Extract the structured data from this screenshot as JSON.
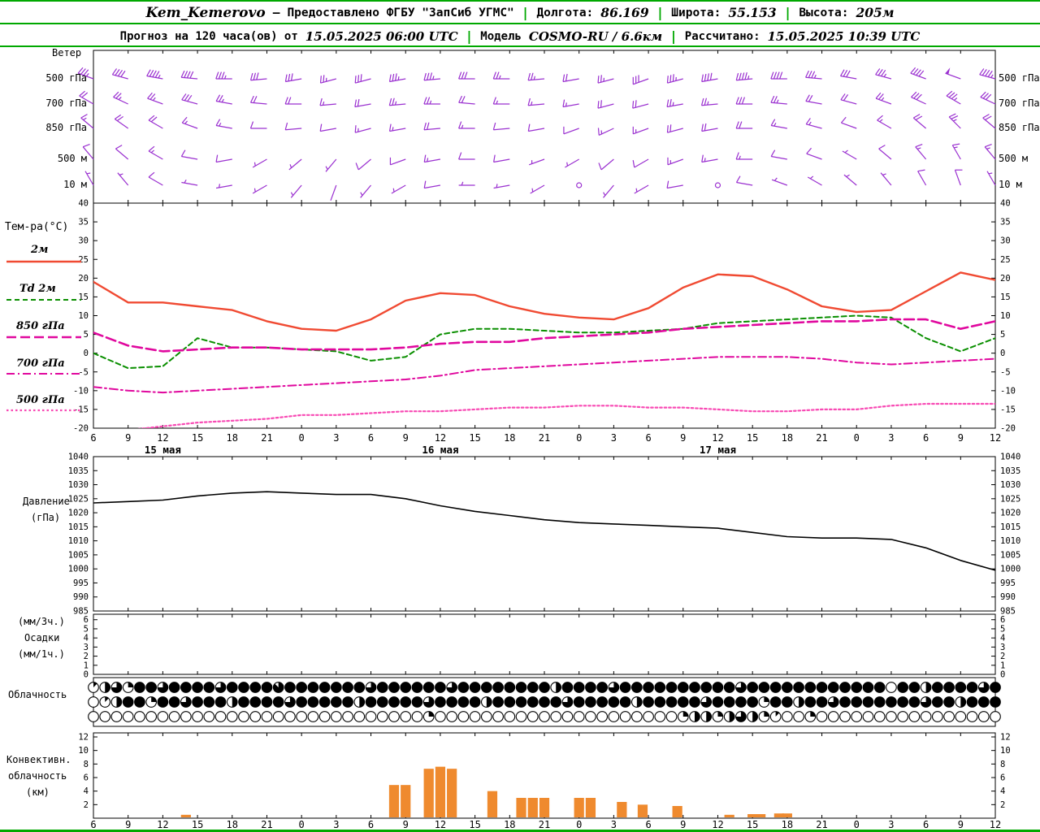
{
  "header": {
    "station": "Kem_Kemerovo",
    "dash": "—",
    "provided": "Предоставлено ФГБУ \"ЗапСиб УГМС\"",
    "sep": "|",
    "lon_label": "Долгота:",
    "lon_value": "86.169",
    "lat_label": "Широта:",
    "lat_value": "55.153",
    "alt_label": "Высота:",
    "alt_value": "205м",
    "forecast_label": "Прогноз на 120 часа(ов) от",
    "init_time": "15.05.2025 06:00 UTC",
    "model_label": "Модель",
    "model_value": "COSMO-RU / 6.6км",
    "calc_label": "Рассчитано:",
    "calc_time": "15.05.2025 10:39 UTC"
  },
  "labels": {
    "wind": "Ветер",
    "wind_levels": [
      "500 гПа",
      "700 гПа",
      "850 гПа",
      "500 м",
      "10 м"
    ],
    "temp_title": "Тем-ра(°C)",
    "legend_t2m": "2м",
    "legend_td": "Td 2м",
    "legend_850": "850 гПа",
    "legend_700": "700 гПа",
    "legend_500": "500 гПа",
    "pressure1": "Давление",
    "pressure2": "(гПа)",
    "precip1": "(мм/3ч.)",
    "precip2": "Осадки",
    "precip3": "(мм/1ч.)",
    "cloud": "Облачность",
    "conv1": "Конвективн.",
    "conv2": "облачность",
    "conv3": "(км)"
  },
  "colors": {
    "accent_green": "#00a800",
    "barb_purple": "#9a30d0",
    "temp_red": "#f04a32",
    "dew_green": "#0a8f00",
    "magenta": "#e0089e",
    "pink": "#f84ab4",
    "pressure_black": "#000000",
    "conv_orange": "#ef8a2e"
  },
  "chart_data": {
    "x_hours": [
      6,
      9,
      12,
      15,
      18,
      21,
      24,
      27,
      30,
      33,
      36,
      39,
      42,
      45,
      48,
      51,
      54,
      57,
      60,
      63,
      66,
      69,
      72,
      75,
      78,
      81,
      84
    ],
    "x_hour_labels": [
      "6",
      "9",
      "12",
      "15",
      "18",
      "21",
      "0",
      "3",
      "6",
      "9",
      "12",
      "15",
      "18",
      "21",
      "0",
      "3",
      "6",
      "9",
      "12",
      "15",
      "18",
      "21",
      "0",
      "3",
      "6",
      "9",
      "12"
    ],
    "dates": [
      {
        "label": "15 мая",
        "hour": 12
      },
      {
        "label": "16 мая",
        "hour": 36
      },
      {
        "label": "17 мая",
        "hour": 60
      }
    ],
    "panels": [
      {
        "type": "wind_barbs",
        "title": "Ветер",
        "color": "#9a30d0",
        "levels": [
          {
            "name": "500 гПа",
            "dir": [
              290,
              285,
              280,
              275,
              270,
              265,
              260,
              255,
              255,
              260,
              265,
              270,
              270,
              265,
              260,
              255,
              250,
              255,
              260,
              265,
              270,
              275,
              280,
              285,
              290,
              290,
              285
            ],
            "speed_kt": [
              35,
              40,
              45,
              40,
              35,
              30,
              30,
              25,
              30,
              35,
              35,
              30,
              25,
              25,
              20,
              25,
              30,
              35,
              40,
              45,
              40,
              35,
              30,
              35,
              40,
              50,
              45
            ]
          },
          {
            "name": "700 гПа",
            "dir": [
              300,
              295,
              290,
              285,
              280,
              275,
              270,
              265,
              260,
              265,
              270,
              275,
              270,
              265,
              260,
              255,
              255,
              260,
              265,
              270,
              275,
              280,
              285,
              290,
              295,
              300,
              295
            ],
            "speed_kt": [
              20,
              25,
              25,
              30,
              25,
              20,
              20,
              15,
              20,
              25,
              25,
              20,
              15,
              15,
              15,
              20,
              20,
              25,
              25,
              30,
              25,
              20,
              20,
              25,
              30,
              35,
              30
            ]
          },
          {
            "name": "850 гПа",
            "dir": [
              310,
              305,
              300,
              290,
              280,
              270,
              265,
              260,
              255,
              260,
              265,
              270,
              265,
              260,
              250,
              245,
              250,
              255,
              260,
              270,
              280,
              285,
              290,
              300,
              310,
              315,
              310
            ],
            "speed_kt": [
              15,
              20,
              20,
              15,
              15,
              10,
              10,
              10,
              15,
              15,
              20,
              15,
              10,
              10,
              10,
              15,
              15,
              20,
              20,
              20,
              15,
              15,
              10,
              15,
              20,
              25,
              20
            ]
          },
          {
            "name": "500 м",
            "dir": [
              320,
              310,
              300,
              280,
              260,
              240,
              230,
              220,
              230,
              250,
              260,
              270,
              260,
              250,
              240,
              230,
              240,
              250,
              260,
              270,
              280,
              290,
              300,
              310,
              320,
              330,
              320
            ],
            "speed_kt": [
              10,
              10,
              15,
              10,
              10,
              5,
              5,
              5,
              10,
              10,
              15,
              10,
              10,
              5,
              5,
              10,
              10,
              15,
              15,
              15,
              10,
              10,
              5,
              10,
              15,
              15,
              15
            ]
          },
          {
            "name": "10 м",
            "dir": [
              330,
              320,
              300,
              280,
              260,
              240,
              220,
              200,
              220,
              240,
              260,
              270,
              260,
              240,
              0,
              220,
              240,
              260,
              0,
              280,
              290,
              300,
              310,
              320,
              330,
              340,
              330
            ],
            "speed_kt": [
              5,
              5,
              10,
              5,
              5,
              3,
              3,
              2,
              5,
              5,
              10,
              5,
              5,
              3,
              0,
              5,
              5,
              10,
              0,
              10,
              5,
              5,
              5,
              5,
              10,
              10,
              5
            ]
          }
        ]
      },
      {
        "type": "line",
        "title": "Тем-ра(°C)",
        "ylim": [
          -20,
          40
        ],
        "yticks": [
          40,
          35,
          30,
          25,
          20,
          15,
          10,
          5,
          0,
          -5,
          -10,
          -15,
          -20
        ],
        "series": [
          {
            "name": "2м",
            "color": "#f04a32",
            "style": "solid",
            "width": 2.4,
            "values": [
              19,
              13.5,
              13.5,
              12.5,
              11.5,
              8.5,
              6.5,
              6,
              9,
              14,
              16,
              15.5,
              12.5,
              10.5,
              9.5,
              9,
              12,
              17.5,
              21,
              20.5,
              17,
              12.5,
              11,
              11.5,
              16.5,
              21.5,
              19.5
            ]
          },
          {
            "name": "Td 2м",
            "color": "#0a8f00",
            "style": "dash",
            "width": 2,
            "values": [
              0,
              -4,
              -3.5,
              4,
              1.5,
              1.5,
              1,
              0.5,
              -2,
              -1,
              5,
              6.5,
              6.5,
              6,
              5.5,
              5.5,
              6,
              6.5,
              8,
              8.5,
              9,
              9.5,
              10,
              9.5,
              4,
              0.5,
              4
            ]
          },
          {
            "name": "850 гПа",
            "color": "#e0089e",
            "style": "longdash",
            "width": 2.6,
            "values": [
              5.5,
              2,
              0.5,
              1,
              1.5,
              1.5,
              1,
              1,
              1,
              1.5,
              2.5,
              3,
              3,
              4,
              4.5,
              5,
              5.5,
              6.5,
              7,
              7.5,
              8,
              8.5,
              8.5,
              9,
              9,
              6.5,
              8.5
            ]
          },
          {
            "name": "700 гПа",
            "color": "#e0089e",
            "style": "dashdot",
            "width": 2,
            "values": [
              -9,
              -10,
              -10.5,
              -10,
              -9.5,
              -9,
              -8.5,
              -8,
              -7.5,
              -7,
              -6,
              -4.5,
              -4,
              -3.5,
              -3,
              -2.5,
              -2,
              -1.5,
              -1,
              -1,
              -1,
              -1.5,
              -2.5,
              -3,
              -2.5,
              -2,
              -1.5
            ]
          },
          {
            "name": "500 гПа",
            "color": "#f84ab4",
            "style": "dot",
            "width": 2.2,
            "values": [
              -21,
              -20.5,
              -19.5,
              -18.5,
              -18,
              -17.5,
              -16.5,
              -16.5,
              -16,
              -15.5,
              -15.5,
              -15,
              -14.5,
              -14.5,
              -14,
              -14,
              -14.5,
              -14.5,
              -15,
              -15.5,
              -15.5,
              -15,
              -15,
              -14,
              -13.5,
              -13.5,
              -13.5
            ]
          }
        ]
      },
      {
        "type": "line",
        "title": "Давление (гПа)",
        "ylim": [
          985,
          1040
        ],
        "yticks": [
          1040,
          1035,
          1030,
          1025,
          1020,
          1015,
          1010,
          1005,
          1000,
          995,
          990,
          985
        ],
        "series": [
          {
            "name": "Давление",
            "color": "#000000",
            "style": "solid",
            "width": 1.6,
            "values": [
              1023.5,
              1024,
              1024.5,
              1026,
              1027,
              1027.5,
              1027,
              1026.5,
              1026.5,
              1025,
              1022.5,
              1020.5,
              1019,
              1017.5,
              1016.5,
              1016,
              1015.5,
              1015,
              1014.5,
              1013,
              1011.5,
              1011,
              1011,
              1010.5,
              1007.5,
              1003,
              999.5
            ]
          }
        ]
      },
      {
        "type": "bar",
        "title": "Осадки (мм/3ч., мм/1ч.)",
        "ylim": [
          0,
          6.6
        ],
        "yticks": [
          6,
          5,
          4,
          3,
          2,
          1,
          0
        ],
        "values": [
          0,
          0,
          0,
          0,
          0,
          0,
          0,
          0,
          0,
          0,
          0,
          0,
          0,
          0,
          0,
          0,
          0,
          0,
          0,
          0,
          0,
          0,
          0,
          0,
          0,
          0,
          0
        ]
      },
      {
        "type": "cloud_cover_symbols",
        "title": "Облачность",
        "x_start": 6,
        "x_step": 1,
        "rows": [
          {
            "octas": [
              1,
              4,
              6,
              2,
              8,
              8,
              6,
              8,
              8,
              8,
              8,
              6,
              8,
              8,
              8,
              8,
              7,
              8,
              8,
              8,
              8,
              8,
              8,
              8,
              6,
              8,
              8,
              8,
              8,
              8,
              8,
              6,
              8,
              8,
              8,
              8,
              8,
              8,
              8,
              8,
              4,
              8,
              8,
              8,
              8,
              6,
              8,
              8,
              8,
              8,
              8,
              8,
              8,
              8,
              8,
              8,
              6,
              8,
              8,
              8,
              8,
              8,
              8,
              8,
              8,
              8,
              8,
              8,
              8,
              0,
              8,
              8,
              4,
              8,
              8,
              8,
              8,
              6,
              8
            ]
          },
          {
            "octas": [
              0,
              1,
              4,
              8,
              8,
              2,
              8,
              8,
              6,
              8,
              8,
              8,
              4,
              8,
              8,
              8,
              8,
              6,
              8,
              8,
              8,
              8,
              8,
              4,
              8,
              8,
              8,
              8,
              8,
              6,
              8,
              8,
              8,
              8,
              4,
              8,
              8,
              8,
              8,
              8,
              8,
              6,
              8,
              8,
              8,
              8,
              8,
              4,
              8,
              8,
              8,
              8,
              8,
              6,
              8,
              8,
              8,
              8,
              2,
              8,
              8,
              4,
              8,
              8,
              6,
              8,
              8,
              8,
              8,
              8,
              8,
              8,
              6,
              8,
              8,
              4,
              8,
              8,
              8
            ]
          },
          {
            "octas": [
              0,
              0,
              0,
              0,
              0,
              0,
              0,
              0,
              0,
              0,
              0,
              0,
              0,
              0,
              0,
              0,
              0,
              0,
              0,
              0,
              0,
              0,
              0,
              0,
              0,
              0,
              0,
              0,
              0,
              2,
              0,
              0,
              0,
              0,
              0,
              0,
              0,
              0,
              0,
              0,
              0,
              0,
              0,
              0,
              0,
              0,
              0,
              0,
              0,
              0,
              0,
              2,
              4,
              4,
              2,
              4,
              6,
              4,
              2,
              1,
              0,
              0,
              2,
              0,
              0,
              0,
              0,
              0,
              0,
              0,
              0,
              0,
              0,
              0,
              0,
              0,
              0,
              0,
              0
            ]
          }
        ]
      },
      {
        "type": "bar",
        "title": "Конвективная облачность (км)",
        "color": "#ef8a2e",
        "ylim": [
          0,
          12.6
        ],
        "yticks": [
          12,
          10,
          8,
          6,
          4,
          2
        ],
        "bars": [
          [
            14,
            0.5
          ],
          [
            32,
            4.9
          ],
          [
            33,
            4.9
          ],
          [
            35,
            7.3
          ],
          [
            36,
            7.6
          ],
          [
            37,
            7.3
          ],
          [
            40.5,
            4.0
          ],
          [
            43,
            3.0
          ],
          [
            44,
            3.0
          ],
          [
            45,
            3.0
          ],
          [
            48,
            3.0
          ],
          [
            49,
            3.0
          ],
          [
            51.7,
            2.4
          ],
          [
            53.5,
            2.0
          ],
          [
            56.5,
            1.8
          ],
          [
            61,
            0.5
          ],
          [
            63,
            0.6
          ],
          [
            63.7,
            0.6
          ],
          [
            65.3,
            0.7
          ],
          [
            66,
            0.7
          ]
        ]
      }
    ]
  }
}
